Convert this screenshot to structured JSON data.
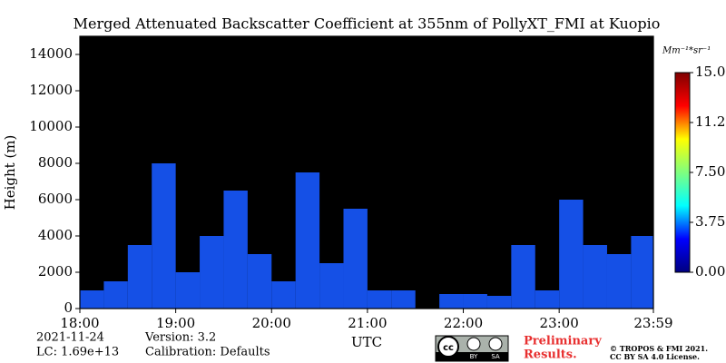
{
  "chart_data": {
    "type": "bar",
    "title": "Merged Attenuated Backscatter Coefficient at 355nm of PollyXT_FMI at Kuopio",
    "y_label": "Height (m)",
    "x_label": "UTC",
    "x": [
      18.0,
      18.25,
      18.5,
      18.75,
      19.0,
      19.25,
      19.5,
      19.75,
      20.0,
      20.25,
      20.5,
      20.75,
      21.0,
      21.25,
      21.5,
      21.75,
      22.0,
      22.25,
      22.5,
      22.75,
      23.0,
      23.25,
      23.5,
      23.75
    ],
    "values": [
      1000,
      1500,
      3500,
      8000,
      2000,
      4000,
      6500,
      3000,
      1500,
      7500,
      2500,
      5500,
      1000,
      1000,
      null,
      800,
      800,
      700,
      3500,
      1000,
      6000,
      3500,
      3000,
      4000
    ],
    "color": "#1550e6",
    "bar_width": 0.25,
    "xlim": [
      18.0,
      23.983
    ],
    "xticks": [
      {
        "value": 18,
        "label": "18:00"
      },
      {
        "value": 19,
        "label": "19:00"
      },
      {
        "value": 20,
        "label": "20:00"
      },
      {
        "value": 21,
        "label": "21:00"
      },
      {
        "value": 22,
        "label": "22:00"
      },
      {
        "value": 23,
        "label": "23:00"
      },
      {
        "value": 23.983,
        "label": "23:59"
      }
    ],
    "ylim": [
      0,
      15000
    ],
    "yticks": [
      0,
      2000,
      4000,
      6000,
      8000,
      10000,
      12000,
      14000
    ],
    "background": "#000000",
    "colorbar": {
      "label": "Mm⁻¹*sr⁻¹",
      "clim": [
        0,
        15
      ],
      "ticks": [
        {
          "value": 0,
          "label": "0.00"
        },
        {
          "value": 3.75,
          "label": "3.75"
        },
        {
          "value": 7.5,
          "label": "7.50"
        },
        {
          "value": 11.25,
          "label": "11.25"
        },
        {
          "value": 15,
          "label": "15.00"
        }
      ],
      "colors": [
        "#00007f",
        "#0000ff",
        "#00ffff",
        "#7fff7f",
        "#ffff00",
        "#ff0000",
        "#7f0000"
      ]
    },
    "info": {
      "date": "2021-11-24",
      "version": "Version: 3.2",
      "lc": "LC: 1.69e+13",
      "calibration": "Calibration: Defaults"
    },
    "license": {
      "logo": [
        "cc",
        "BY",
        "SA"
      ],
      "preliminary": [
        "Preliminary",
        "Results."
      ],
      "copyright": [
        "© TROPOS & FMI 2021.",
        "CC BY SA 4.0 License."
      ]
    }
  }
}
